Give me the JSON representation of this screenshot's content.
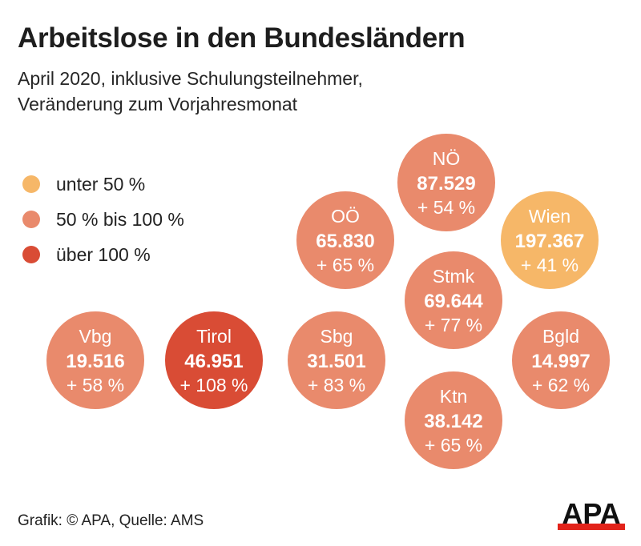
{
  "header": {
    "title": "Arbeitslose in den Bundesländern",
    "subtitle_line1": "April 2020, inklusive Schulungsteilnehmer,",
    "subtitle_line2": "Veränderung zum Vorjahresmonat"
  },
  "legend": [
    {
      "label": "unter 50 %",
      "color": "#f6b768"
    },
    {
      "label": "50 % bis 100 %",
      "color": "#e98a6c"
    },
    {
      "label": "über 100 %",
      "color": "#d94c35"
    }
  ],
  "chart_data": {
    "type": "bubble-grid",
    "title": "Arbeitslose in den Bundesländern",
    "subtitle": "April 2020, inklusive Schulungsteilnehmer, Veränderung zum Vorjahresmonat",
    "unit": "Arbeitslose inkl. Schulungsteilnehmer",
    "categories": [
      "NÖ",
      "OÖ",
      "Wien",
      "Stmk",
      "Vbg",
      "Tirol",
      "Sbg",
      "Bgld",
      "Ktn"
    ],
    "items": [
      {
        "name": "NÖ",
        "value": 87529,
        "value_label": "87.529",
        "change": 54,
        "change_label": "+ 54 %",
        "class": "50 % bis 100 %"
      },
      {
        "name": "OÖ",
        "value": 65830,
        "value_label": "65.830",
        "change": 65,
        "change_label": "+ 65 %",
        "class": "50 % bis 100 %"
      },
      {
        "name": "Wien",
        "value": 197367,
        "value_label": "197.367",
        "change": 41,
        "change_label": "+ 41 %",
        "class": "unter 50 %"
      },
      {
        "name": "Stmk",
        "value": 69644,
        "value_label": "69.644",
        "change": 77,
        "change_label": "+ 77 %",
        "class": "50 % bis 100 %"
      },
      {
        "name": "Vbg",
        "value": 19516,
        "value_label": "19.516",
        "change": 58,
        "change_label": "+ 58 %",
        "class": "50 % bis 100 %"
      },
      {
        "name": "Tirol",
        "value": 46951,
        "value_label": "46.951",
        "change": 108,
        "change_label": "+ 108 %",
        "class": "über 100 %"
      },
      {
        "name": "Sbg",
        "value": 31501,
        "value_label": "31.501",
        "change": 83,
        "change_label": "+ 83 %",
        "class": "50 % bis 100 %"
      },
      {
        "name": "Bgld",
        "value": 14997,
        "value_label": "14.997",
        "change": 62,
        "change_label": "+ 62 %",
        "class": "50 % bis 100 %"
      },
      {
        "name": "Ktn",
        "value": 38142,
        "value_label": "38.142",
        "change": 65,
        "change_label": "+ 65 %",
        "class": "50 % bis 100 %"
      }
    ],
    "thresholds": [
      50,
      100
    ]
  },
  "footer": {
    "credit": "Grafik: © APA, Quelle: AMS",
    "logo_text": "APA",
    "logo_bar_color": "#e2231a"
  }
}
